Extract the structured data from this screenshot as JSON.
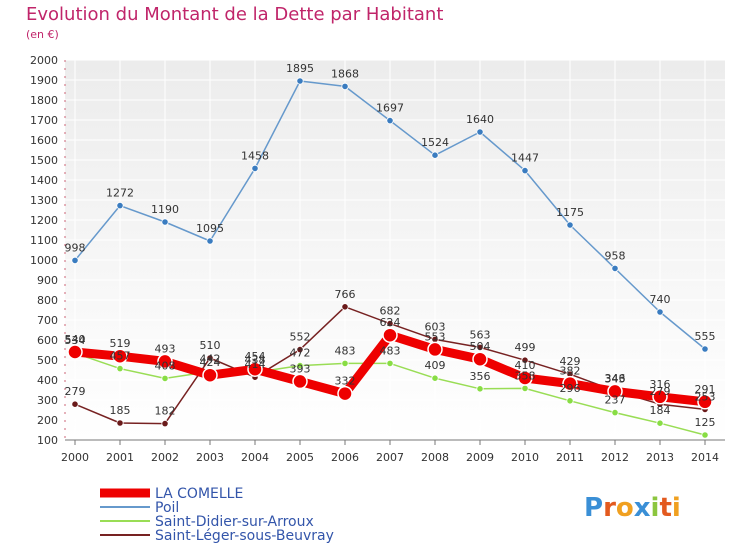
{
  "chart_data": {
    "type": "line",
    "title": "Evolution du Montant de la Dette par Habitant",
    "subtitle": "(en €)",
    "x": [
      "2000",
      "2001",
      "2002",
      "2003",
      "2004",
      "2005",
      "2006",
      "2007",
      "2008",
      "2009",
      "2010",
      "2011",
      "2012",
      "2013",
      "2014"
    ],
    "ylim": [
      100,
      2000
    ],
    "yticks": [
      100,
      200,
      300,
      400,
      500,
      600,
      700,
      800,
      900,
      1000,
      1100,
      1200,
      1300,
      1400,
      1500,
      1600,
      1700,
      1800,
      1900,
      2000
    ],
    "grid": true,
    "series": [
      {
        "name": "LA COMELLE",
        "color": "#ee0000",
        "width": 9,
        "values": [
          540,
          519,
          493,
          424,
          454,
          393,
          332,
          624,
          553,
          504,
          410,
          382,
          343,
          316,
          291
        ]
      },
      {
        "name": "Poil",
        "color": "#6699cc",
        "width": 1.5,
        "values": [
          998,
          1272,
          1190,
          1095,
          1458,
          1895,
          1868,
          1697,
          1524,
          1640,
          1447,
          1175,
          958,
          740,
          555
        ]
      },
      {
        "name": "Saint-Didier-sur-Arroux",
        "color": "#99dd55",
        "width": 1.5,
        "values": [
          534,
          457,
          408,
          442,
          438,
          472,
          483,
          483,
          409,
          356,
          358,
          296,
          237,
          184,
          125
        ]
      },
      {
        "name": "Saint-Léger-sous-Beuvray",
        "color": "#772222",
        "width": 1.5,
        "values": [
          279,
          185,
          182,
          510,
          414,
          552,
          766,
          682,
          603,
          563,
          499,
          429,
          346,
          279,
          253
        ]
      }
    ]
  },
  "legend_position": "bottom-left",
  "brand": {
    "text": "Proxiti"
  }
}
